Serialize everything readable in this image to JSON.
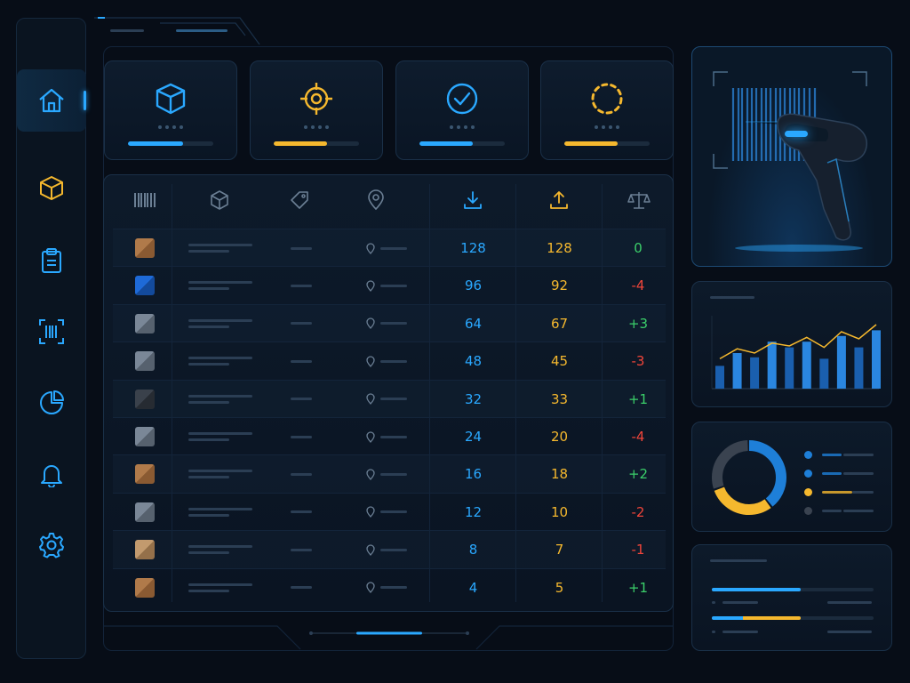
{
  "colors": {
    "accent_blue": "#2aa8ff",
    "accent_yellow": "#f5b82e",
    "positive_green": "#3bcf6a",
    "negative_red": "#f0453a",
    "panel_border": "#1a3048",
    "background": "#070d17"
  },
  "sidebar": {
    "items": [
      {
        "icon": "home-icon",
        "active": true
      },
      {
        "icon": "box-icon",
        "active": false
      },
      {
        "icon": "clipboard-icon",
        "active": false
      },
      {
        "icon": "barcode-scan-icon",
        "active": false
      },
      {
        "icon": "pie-chart-icon",
        "active": false
      },
      {
        "icon": "bell-icon",
        "active": false
      },
      {
        "icon": "gear-icon",
        "active": false
      }
    ]
  },
  "stat_cards": [
    {
      "icon": "cube-icon",
      "color": "#2aa8ff",
      "progress": 0.65
    },
    {
      "icon": "target-icon",
      "color": "#f5b82e",
      "progress": 0.62
    },
    {
      "icon": "check-circle-icon",
      "color": "#2aa8ff",
      "progress": 0.62
    },
    {
      "icon": "dashed-circle-icon",
      "color": "#f5b82e",
      "progress": 0.62
    }
  ],
  "table": {
    "header_icons": [
      "barcode-icon",
      "package-icon",
      "tag-icon",
      "location-pin-icon",
      "inbound-icon",
      "outbound-icon",
      "balance-scale-icon"
    ],
    "rows": [
      {
        "box": "brown",
        "in": "128",
        "out": "128",
        "diff": "0"
      },
      {
        "box": "blue",
        "in": "96",
        "out": "92",
        "diff": "-4"
      },
      {
        "box": "gray",
        "in": "64",
        "out": "67",
        "diff": "+3"
      },
      {
        "box": "gray",
        "in": "48",
        "out": "45",
        "diff": "-3"
      },
      {
        "box": "dark",
        "in": "32",
        "out": "33",
        "diff": "+1"
      },
      {
        "box": "gray",
        "in": "24",
        "out": "20",
        "diff": "-4"
      },
      {
        "box": "brown",
        "in": "16",
        "out": "18",
        "diff": "+2"
      },
      {
        "box": "gray",
        "in": "12",
        "out": "10",
        "diff": "-2"
      },
      {
        "box": "tan",
        "in": "8",
        "out": "7",
        "diff": "-1"
      },
      {
        "box": "brown",
        "in": "4",
        "out": "5",
        "diff": "+1"
      }
    ]
  },
  "scanner_panel": {
    "icon": "barcode-scanner-icon"
  },
  "mini_chart": {
    "chart_data": {
      "type": "bar",
      "bars": [
        0.32,
        0.5,
        0.44,
        0.66,
        0.58,
        0.66,
        0.42,
        0.74,
        0.58,
        0.82
      ],
      "line": [
        0.42,
        0.56,
        0.5,
        0.64,
        0.6,
        0.72,
        0.58,
        0.8,
        0.7,
        0.9
      ]
    }
  },
  "donut": {
    "segments": [
      {
        "color": "#1e7fd8",
        "value": 0.4
      },
      {
        "color": "#f5b82e",
        "value": 0.3
      },
      {
        "color": "#3a4350",
        "value": 0.3
      }
    ],
    "legend": [
      {
        "color": "#1e7fd8"
      },
      {
        "color": "#1e7fd8"
      },
      {
        "color": "#f5b82e"
      },
      {
        "color": "#3a4350"
      }
    ]
  },
  "progress_panel": {
    "bars": [
      {
        "color": "#2aa8ff",
        "value": 0.55
      },
      {
        "color": "#f5b82e",
        "value": 0.55
      }
    ]
  }
}
